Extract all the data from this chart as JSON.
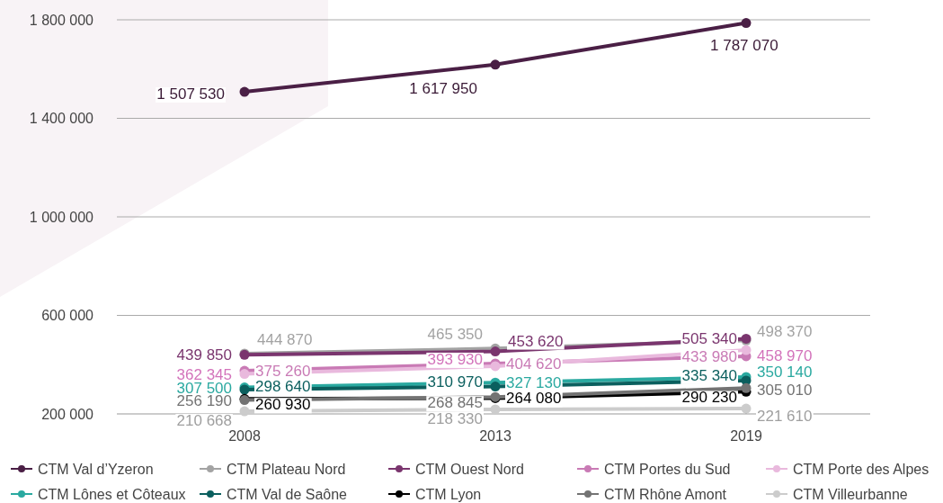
{
  "chart_data": {
    "type": "line",
    "categories": [
      "2008",
      "2013",
      "2019"
    ],
    "ylim": [
      200000,
      1800000
    ],
    "yticks": [
      {
        "value": 200000,
        "label": "200 000"
      },
      {
        "value": 600000,
        "label": "600 000"
      },
      {
        "value": 1000000,
        "label": "1 000 000"
      },
      {
        "value": 1400000,
        "label": "1 400 000"
      },
      {
        "value": 1800000,
        "label": "1 800 000"
      }
    ],
    "grid": "y",
    "legend": "bottom",
    "marker": "circle",
    "line_style": "solid",
    "series": [
      {
        "name": "CTM Val d’Yzeron",
        "color": "#4a1f45",
        "values": [
          1507530,
          1617950,
          1787070
        ],
        "value_labels": [
          "1 507 530",
          "1 617 950",
          "1 787 070"
        ]
      },
      {
        "name": "CTM Plateau Nord",
        "color": "#a3a3a3",
        "values": [
          444870,
          465350,
          498370
        ],
        "value_labels": [
          "444 870",
          "465 350",
          "498 370"
        ]
      },
      {
        "name": "CTM Ouest Nord",
        "color": "#7a356e",
        "values": [
          439850,
          453620,
          505340
        ],
        "value_labels": [
          "439 850",
          "453 620",
          "505 340"
        ]
      },
      {
        "name": "CTM Portes du Sud",
        "color": "#c97ab5",
        "values": [
          375260,
          404620,
          433980
        ],
        "value_labels": [
          "375 260",
          "404 620",
          "433 980"
        ]
      },
      {
        "name": "CTM Porte des Alpes",
        "color": "#e9b9dd",
        "values": [
          362345,
          393930,
          458970
        ],
        "value_labels": [
          "362 345",
          "393 930",
          "458 970"
        ]
      },
      {
        "name": "CTM Lônes et Côteaux",
        "color": "#2aa9a0",
        "values": [
          307500,
          327130,
          350140
        ],
        "value_labels": [
          "307 500",
          "327 130",
          "350 140"
        ]
      },
      {
        "name": "CTM Val de Saône",
        "color": "#0b5f5e",
        "values": [
          298640,
          310970,
          335340
        ],
        "value_labels": [
          "298 640",
          "310 970",
          "335 340"
        ]
      },
      {
        "name": "CTM Lyon",
        "color": "#000000",
        "values": [
          260930,
          264080,
          290230
        ],
        "value_labels": [
          "260 930",
          "264 080",
          "290 230"
        ]
      },
      {
        "name": "CTM Rhône Amont",
        "color": "#737373",
        "values": [
          256190,
          268845,
          305010
        ],
        "value_labels": [
          "256 190",
          "268 845",
          "305 010"
        ]
      },
      {
        "name": "CTM Villeurbanne",
        "color": "#cccccc",
        "values": [
          210668,
          218330,
          221610
        ],
        "value_labels": [
          "210 668",
          "218 330",
          "221 610"
        ]
      }
    ]
  }
}
